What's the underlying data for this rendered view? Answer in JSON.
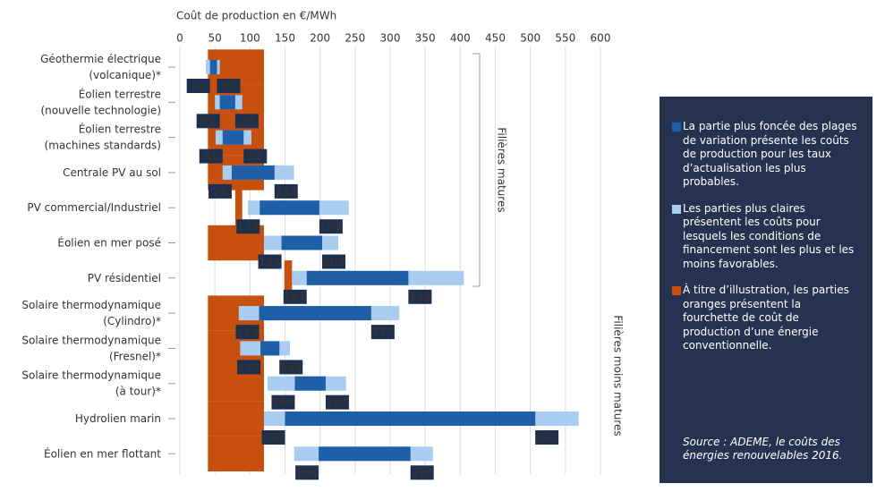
{
  "chart_data": {
    "type": "range-bar",
    "x_label": "Coût de production en €/MWh",
    "xlim": [
      0,
      600
    ],
    "xticks": [
      0,
      50,
      100,
      150,
      200,
      250,
      300,
      350,
      400,
      450,
      500,
      550,
      600
    ],
    "grid": true,
    "categories": [
      "Géothermie électrique\n(volcanique)*",
      "Éolien terrestre\n(nouvelle technologie)",
      "Éolien terrestre\n(machines standards)",
      "Centrale PV au sol",
      "PV commercial/Industriel",
      "Éolien en mer posé",
      "PV résidentiel",
      "Solaire thermodynamique\n(Cylindro)*",
      "Solaire thermodynamique\n(Fresnel)*",
      "Solaire thermodynamique\n(à tour)*",
      "Hydrolien marin",
      "Éolien en mer flottant"
    ],
    "series": [
      {
        "name": "La partie plus foncée des plages de variation présente les coûts de production pour les taux d’actualisation les plus probables.",
        "color": "#1f5fa8",
        "values": [
          [
            43,
            53
          ],
          [
            57,
            79
          ],
          [
            61,
            91
          ],
          [
            74,
            135
          ],
          [
            114,
            199
          ],
          [
            145,
            203
          ],
          [
            181,
            326
          ],
          [
            113,
            273
          ],
          [
            115,
            142
          ],
          [
            164,
            208
          ],
          [
            150,
            507
          ],
          [
            198,
            329
          ]
        ]
      },
      {
        "name": "Les parties plus claires présentent les coûts pour lesquels les conditions de financement sont les plus et les moins favorables.",
        "color": "#a9cdf0",
        "values": [
          [
            37,
            57
          ],
          [
            50,
            89
          ],
          [
            51,
            102
          ],
          [
            61,
            163
          ],
          [
            97,
            241
          ],
          [
            120,
            226
          ],
          [
            160,
            405
          ],
          [
            84,
            313
          ],
          [
            86,
            157
          ],
          [
            125,
            237
          ],
          [
            120,
            569
          ],
          [
            163,
            361
          ]
        ]
      },
      {
        "name": "À titre d’illustration, les parties oranges présentent la fourchette de coût de production d’une énergie conventionnelle.",
        "color": "#c8500f",
        "values": [
          [
            40,
            120
          ],
          [
            40,
            120
          ],
          [
            40,
            120
          ],
          [
            40,
            120
          ],
          [
            79,
            89
          ],
          [
            40,
            120
          ],
          [
            149,
            160
          ],
          [
            40,
            120
          ],
          [
            40,
            120
          ],
          [
            40,
            120
          ],
          [
            40,
            120
          ],
          [
            40,
            120
          ]
        ]
      }
    ],
    "groups": [
      "Filières matures",
      "Filières moins matures"
    ],
    "source": "Source : ADEME, le coûts des énergies renouvelables 2016."
  }
}
